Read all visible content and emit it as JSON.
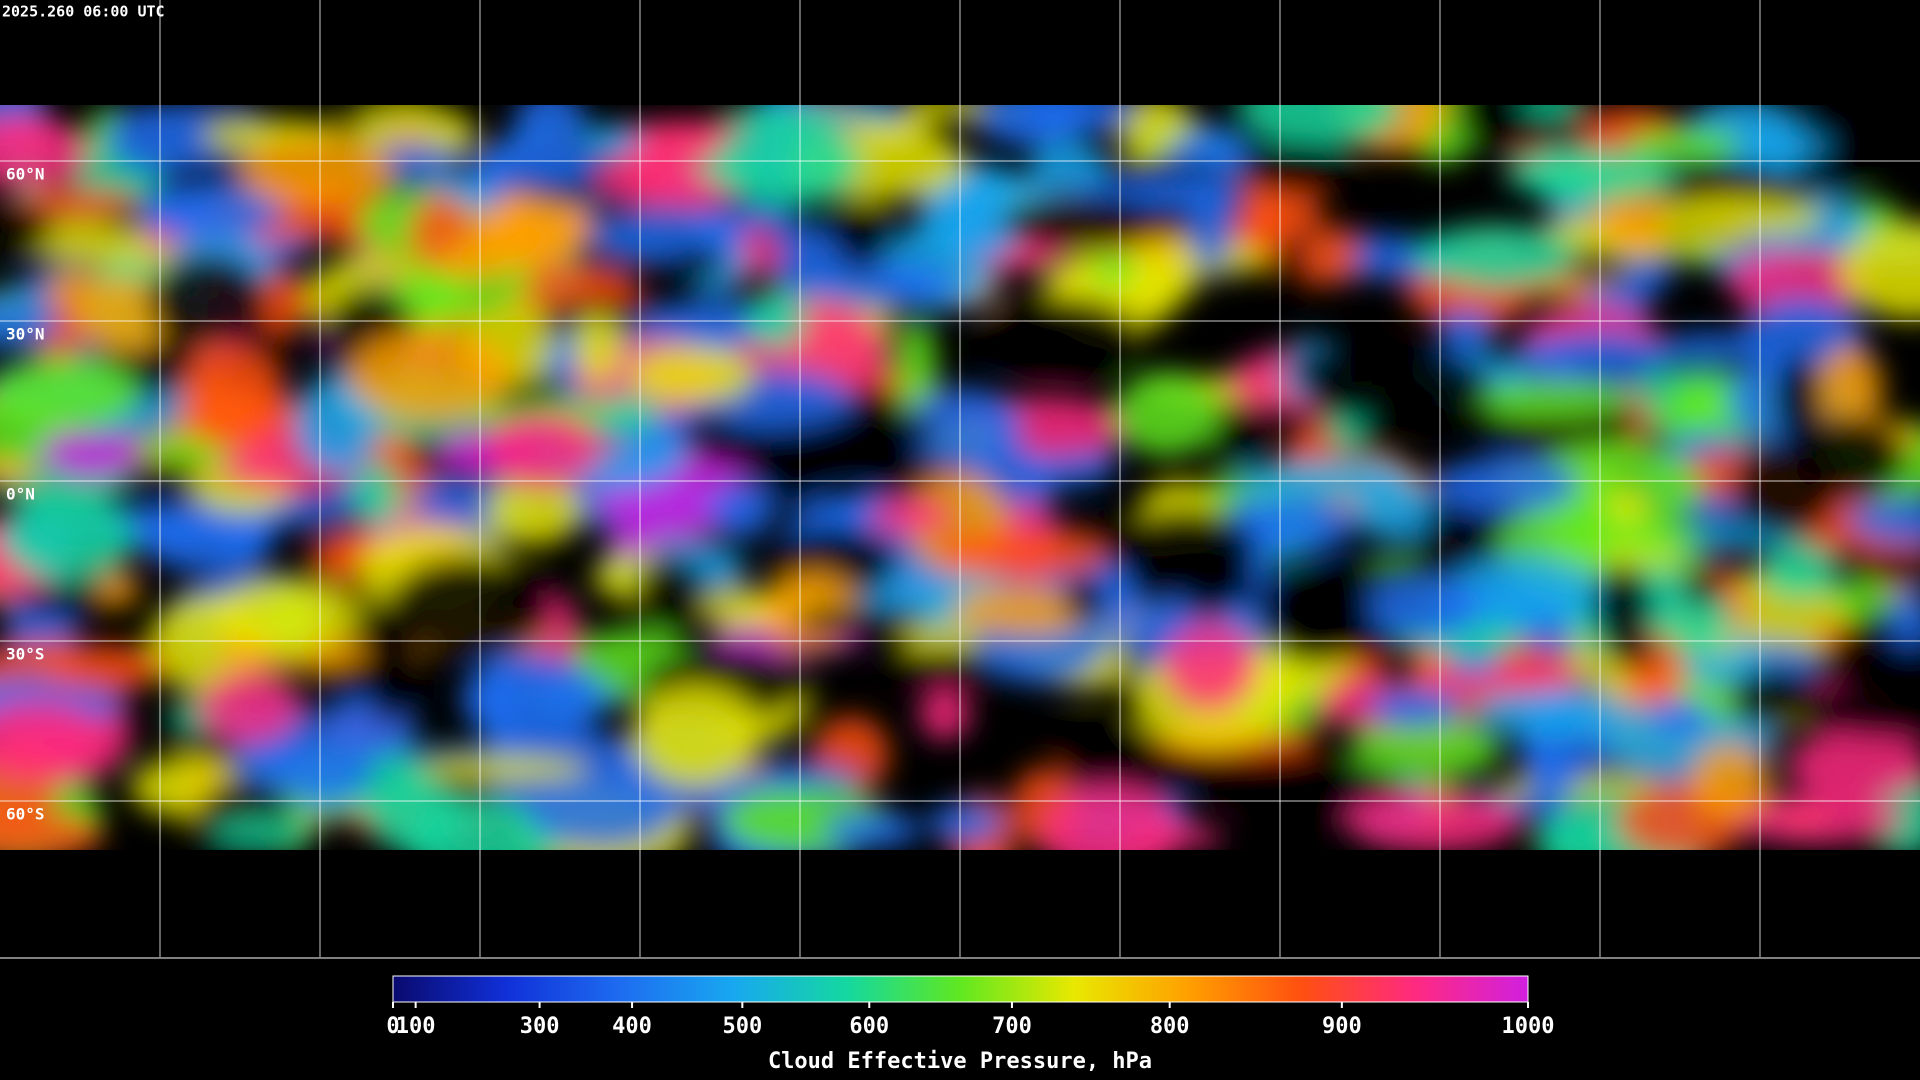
{
  "header": {
    "timestamp": "2025.260 06:00 UTC"
  },
  "map": {
    "latitude_labels": [
      "60°N",
      "30°N",
      "0°N",
      "30°S",
      "60°S"
    ]
  },
  "colorbar": {
    "label": "Cloud Effective Pressure, hPa",
    "lim": [
      0,
      1000
    ],
    "ticks": [
      0,
      100,
      300,
      400,
      500,
      600,
      700,
      800,
      900,
      1000
    ],
    "scale": {
      "type": "power",
      "exponent": 1.7
    },
    "colors": [
      "#0a0a6e",
      "#1030d8",
      "#1e6cf0",
      "#18a8f0",
      "#14d8a0",
      "#60e820",
      "#e8e800",
      "#ffa000",
      "#ff5010",
      "#ff2a80",
      "#d020e0"
    ]
  }
}
